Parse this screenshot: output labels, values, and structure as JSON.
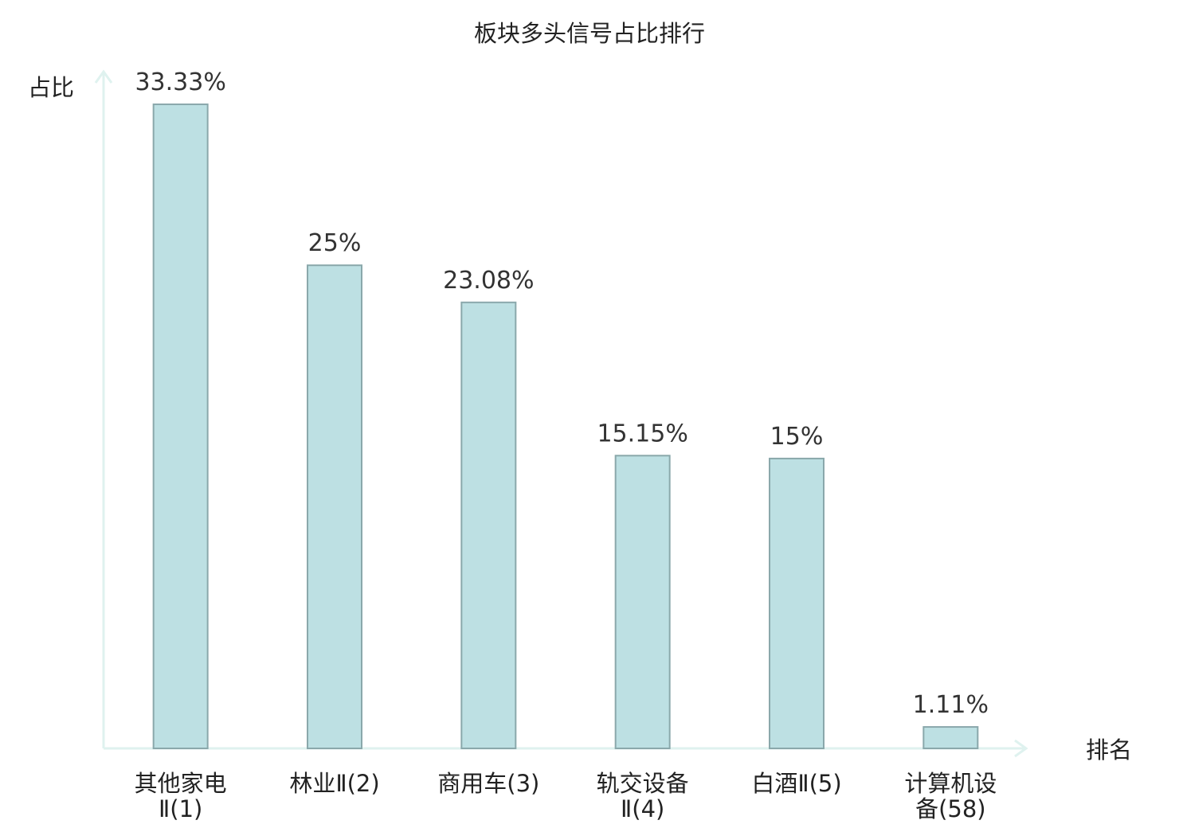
{
  "chart_data": {
    "type": "bar",
    "title": "板块多头信号占比排行",
    "y_label": "占比",
    "x_label": "排名",
    "categories": [
      "其他家电Ⅱ(1)",
      "林业Ⅱ(2)",
      "商用车(3)",
      "轨交设备Ⅱ(4)",
      "白酒Ⅱ(5)",
      "计算机设备(58)"
    ],
    "values": [
      33.33,
      25,
      23.08,
      15.15,
      15,
      1.11
    ],
    "value_labels": [
      "33.33%",
      "25%",
      "23.08%",
      "15.15%",
      "15%",
      "1.11%"
    ],
    "color": "#bde0e3",
    "edge_color": "#8aa8ab",
    "label_colors": [
      "#111111",
      "#111111",
      "#111111",
      "#111111",
      "#111111",
      "#e02020"
    ],
    "ylim": [
      0,
      35
    ]
  }
}
